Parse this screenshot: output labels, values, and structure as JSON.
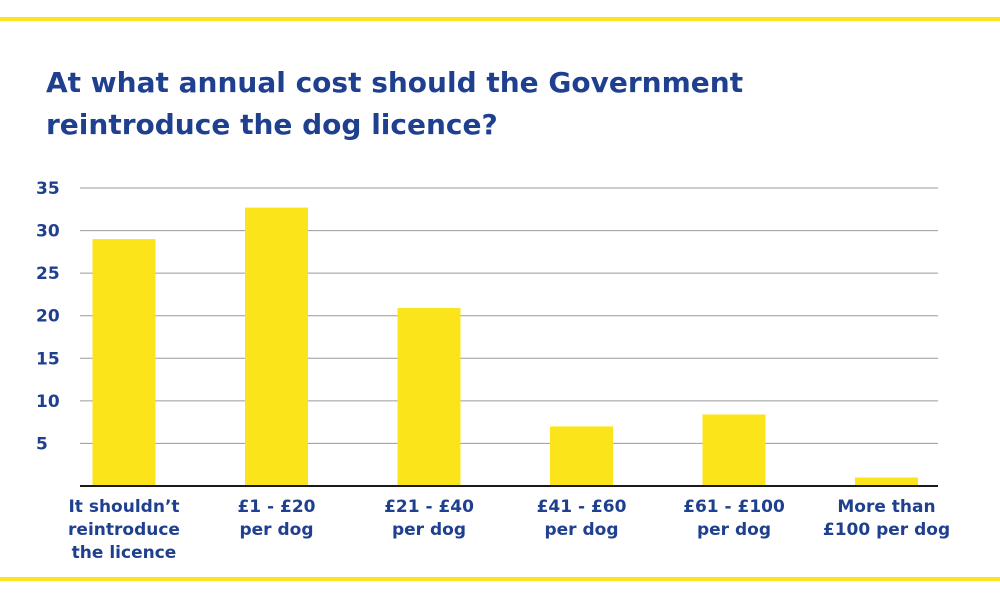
{
  "colors": {
    "accent_yellow": "#FBE51A",
    "title_navy": "#1F3F8F",
    "axis_line": "#1A1A1A",
    "grid_line": "#9A9A9A"
  },
  "chart_data": {
    "type": "bar",
    "title_lines": [
      "At what annual cost should the Government",
      "reintroduce the dog licence?"
    ],
    "categories": [
      [
        "It shouldn’t",
        "reintroduce",
        "the licence"
      ],
      [
        "£1 - £20",
        "per dog"
      ],
      [
        "£21 - £40",
        "per dog"
      ],
      [
        "£41 - £60",
        "per dog"
      ],
      [
        "£61 - £100",
        "per dog"
      ],
      [
        "More than",
        "£100 per dog"
      ]
    ],
    "values": [
      29,
      32.7,
      20.9,
      7,
      8.4,
      1
    ],
    "ylim": [
      0,
      35
    ],
    "yticks": [
      "5",
      "10",
      "15",
      "20",
      "25",
      "30",
      "35"
    ],
    "xlabel": "",
    "ylabel": "",
    "grid": true,
    "legend": "none"
  }
}
